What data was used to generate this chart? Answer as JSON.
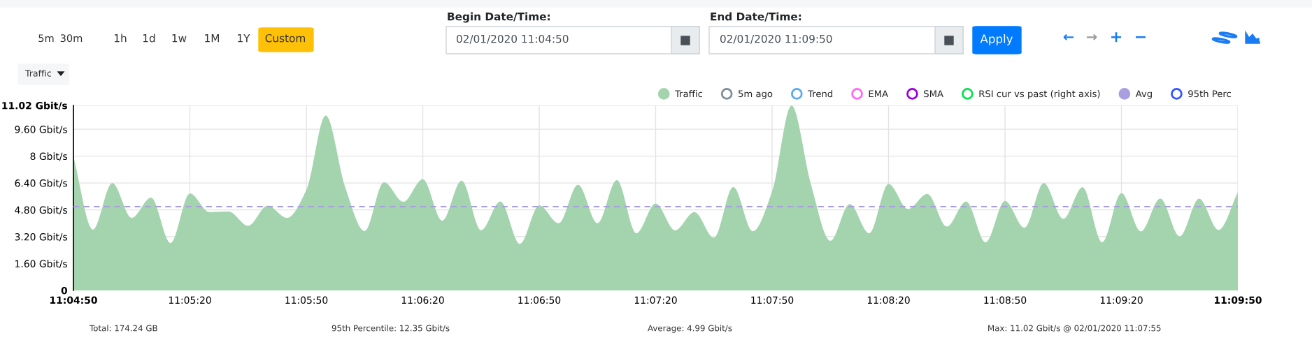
{
  "chart_data": {
    "type": "area",
    "x": [
      "2020-02-01T11:04:50",
      "2020-02-01T11:04:55",
      "2020-02-01T11:05:00",
      "2020-02-01T11:05:05",
      "2020-02-01T11:05:10",
      "2020-02-01T11:05:15",
      "2020-02-01T11:05:20",
      "2020-02-01T11:05:25",
      "2020-02-01T11:05:30",
      "2020-02-01T11:05:35",
      "2020-02-01T11:05:40",
      "2020-02-01T11:05:45",
      "2020-02-01T11:05:50",
      "2020-02-01T11:05:55",
      "2020-02-01T11:06:00",
      "2020-02-01T11:06:05",
      "2020-02-01T11:06:10",
      "2020-02-01T11:06:15",
      "2020-02-01T11:06:20",
      "2020-02-01T11:06:25",
      "2020-02-01T11:06:30",
      "2020-02-01T11:06:35",
      "2020-02-01T11:06:40",
      "2020-02-01T11:06:45",
      "2020-02-01T11:06:50",
      "2020-02-01T11:06:55",
      "2020-02-01T11:07:00",
      "2020-02-01T11:07:05",
      "2020-02-01T11:07:10",
      "2020-02-01T11:07:15",
      "2020-02-01T11:07:20",
      "2020-02-01T11:07:25",
      "2020-02-01T11:07:30",
      "2020-02-01T11:07:35",
      "2020-02-01T11:07:40",
      "2020-02-01T11:07:45",
      "2020-02-01T11:07:50",
      "2020-02-01T11:07:55",
      "2020-02-01T11:08:00",
      "2020-02-01T11:08:05",
      "2020-02-01T11:08:10",
      "2020-02-01T11:08:15",
      "2020-02-01T11:08:20",
      "2020-02-01T11:08:25",
      "2020-02-01T11:08:30",
      "2020-02-01T11:08:35",
      "2020-02-01T11:08:40",
      "2020-02-01T11:08:45",
      "2020-02-01T11:08:50",
      "2020-02-01T11:08:55",
      "2020-02-01T11:09:00",
      "2020-02-01T11:09:05",
      "2020-02-01T11:09:10",
      "2020-02-01T11:09:15",
      "2020-02-01T11:09:20",
      "2020-02-01T11:09:25",
      "2020-02-01T11:09:30",
      "2020-02-01T11:09:35",
      "2020-02-01T11:09:40",
      "2020-02-01T11:09:45",
      "2020-02-01T11:09:50"
    ],
    "series": [
      {
        "name": "Traffic",
        "color": "#a3d4ae",
        "values": [
          7.97,
          3.62,
          6.4,
          4.32,
          5.53,
          2.82,
          5.78,
          4.67,
          4.7,
          3.85,
          5.05,
          4.32,
          5.98,
          10.43,
          6.15,
          3.53,
          6.45,
          5.28,
          6.63,
          4.15,
          6.55,
          3.58,
          5.3,
          2.77,
          5.07,
          4.0,
          6.3,
          4.0,
          6.58,
          3.4,
          5.18,
          3.58,
          4.67,
          3.13,
          6.17,
          3.52,
          5.9,
          11.02,
          6.32,
          2.95,
          5.15,
          3.4,
          6.35,
          4.85,
          5.75,
          3.8,
          5.3,
          2.86,
          5.33,
          3.73,
          6.4,
          4.26,
          6.15,
          2.86,
          5.8,
          3.51,
          5.48,
          3.21,
          5.47,
          3.6,
          5.85
        ]
      },
      {
        "name": "5m ago",
        "type": "line",
        "color": "#7f8c99",
        "values": [
          null,
          null,
          null,
          null,
          null,
          null,
          null,
          null,
          null,
          null,
          null,
          null,
          null,
          null,
          null,
          null,
          null,
          null,
          null,
          null,
          null,
          null,
          null,
          null,
          null,
          null,
          null,
          null,
          null,
          null,
          null,
          null,
          null,
          null,
          null,
          null,
          null,
          null,
          null,
          null,
          null,
          null,
          null,
          null,
          null,
          null,
          null,
          null,
          null,
          null,
          null,
          null,
          null,
          null,
          null,
          null,
          null,
          null,
          null,
          null,
          null
        ]
      },
      {
        "name": "Trend",
        "type": "line",
        "color": "#5aa9f0",
        "values": [
          null,
          null,
          null,
          null,
          null,
          null,
          null,
          null,
          null,
          null,
          null,
          null,
          null,
          null,
          null,
          null,
          null,
          null,
          null,
          null,
          null,
          null,
          null,
          null,
          null,
          null,
          null,
          null,
          null,
          null,
          null,
          null,
          null,
          null,
          null,
          null,
          null,
          null,
          null,
          null,
          null,
          null,
          null,
          null,
          null,
          null,
          null,
          null,
          null,
          null,
          null,
          null,
          null,
          null,
          null,
          null,
          null,
          null,
          null,
          null,
          null
        ]
      },
      {
        "name": "EMA",
        "type": "line",
        "color": "#ff66ff",
        "values": [
          null,
          null,
          null,
          null,
          null,
          null,
          null,
          null,
          null,
          null,
          null,
          null,
          null,
          null,
          null,
          null,
          null,
          null,
          null,
          null,
          null,
          null,
          null,
          null,
          null,
          null,
          null,
          null,
          null,
          null,
          null,
          null,
          null,
          null,
          null,
          null,
          null,
          null,
          null,
          null,
          null,
          null,
          null,
          null,
          null,
          null,
          null,
          null,
          null,
          null,
          null,
          null,
          null,
          null,
          null,
          null,
          null,
          null,
          null,
          null,
          null
        ]
      },
      {
        "name": "SMA",
        "type": "line",
        "color": "#9900dd",
        "values": [
          null,
          null,
          null,
          null,
          null,
          null,
          null,
          null,
          null,
          null,
          null,
          null,
          null,
          null,
          null,
          null,
          null,
          null,
          null,
          null,
          null,
          null,
          null,
          null,
          null,
          null,
          null,
          null,
          null,
          null,
          null,
          null,
          null,
          null,
          null,
          null,
          null,
          null,
          null,
          null,
          null,
          null,
          null,
          null,
          null,
          null,
          null,
          null,
          null,
          null,
          null,
          null,
          null,
          null,
          null,
          null,
          null,
          null,
          null,
          null,
          null
        ]
      },
      {
        "name": "RSI cur vs past (right axis)",
        "type": "line",
        "color": "#00e64d",
        "values": [
          null,
          null,
          null,
          null,
          null,
          null,
          null,
          null,
          null,
          null,
          null,
          null,
          null,
          null,
          null,
          null,
          null,
          null,
          null,
          null,
          null,
          null,
          null,
          null,
          null,
          null,
          null,
          null,
          null,
          null,
          null,
          null,
          null,
          null,
          null,
          null,
          null,
          null,
          null,
          null,
          null,
          null,
          null,
          null,
          null,
          null,
          null,
          null,
          null,
          null,
          null,
          null,
          null,
          null,
          null,
          null,
          null,
          null,
          null,
          null,
          null
        ]
      },
      {
        "name": "Avg",
        "type": "line",
        "color": "#a99ee0",
        "line_style": "dashed",
        "x": [
          "2020-02-01T11:04:50",
          "2020-02-01T11:09:50"
        ],
        "values": [
          4.99,
          4.99
        ]
      },
      {
        "name": "95th Perc",
        "type": "line",
        "color": "#3355ff",
        "values": [
          null,
          null,
          null,
          null,
          null,
          null,
          null,
          null,
          null,
          null,
          null,
          null,
          null,
          null,
          null,
          null,
          null,
          null,
          null,
          null,
          null,
          null,
          null,
          null,
          null,
          null,
          null,
          null,
          null,
          null,
          null,
          null,
          null,
          null,
          null,
          null,
          null,
          null,
          null,
          null,
          null,
          null,
          null,
          null,
          null,
          null,
          null,
          null,
          null,
          null,
          null,
          null,
          null,
          null,
          null,
          null,
          null,
          null,
          null,
          null,
          null
        ]
      }
    ],
    "xlim": [
      "2020-02-01T11:04:50",
      "2020-02-01T11:09:50"
    ],
    "xticks": [
      {
        "value": "2020-02-01T11:04:50",
        "label": "11:04:50"
      },
      {
        "value": "2020-02-01T11:05:20",
        "label": "11:05:20"
      },
      {
        "value": "2020-02-01T11:05:50",
        "label": "11:05:50"
      },
      {
        "value": "2020-02-01T11:06:20",
        "label": "11:06:20"
      },
      {
        "value": "2020-02-01T11:06:50",
        "label": "11:06:50"
      },
      {
        "value": "2020-02-01T11:07:20",
        "label": "11:07:20"
      },
      {
        "value": "2020-02-01T11:07:50",
        "label": "11:07:50"
      },
      {
        "value": "2020-02-01T11:08:20",
        "label": "11:08:20"
      },
      {
        "value": "2020-02-01T11:08:50",
        "label": "11:08:50"
      },
      {
        "value": "2020-02-01T11:09:20",
        "label": "11:09:20"
      },
      {
        "value": "2020-02-01T11:09:50",
        "label": "11:09:50"
      }
    ],
    "ylim": [
      0,
      11.02
    ],
    "yticks": [
      0,
      {
        "value": 1.6,
        "label": "1.60 Gbit/s"
      },
      {
        "value": 3.2,
        "label": "3.20 Gbit/s"
      },
      {
        "value": 4.8,
        "label": "4.80 Gbit/s"
      },
      {
        "value": 6.4,
        "label": "6.40 Gbit/s"
      },
      {
        "value": 8,
        "label": "8 Gbit/s"
      },
      {
        "value": 9.6,
        "label": "9.60 Gbit/s"
      },
      {
        "value": 11.02,
        "label": "11.02 Gbit/s"
      }
    ],
    "grid": true,
    "legend": "top right",
    "annotations": [
      "5m",
      "30m",
      "1h",
      "1d",
      "1w",
      "1M",
      "1Y",
      "Custom",
      "Traffic",
      "Begin Date/Time:",
      "02/01/2020 11:04:50",
      "End Date/Time:",
      "02/01/2020 11:09:50",
      "Apply",
      "←",
      "→",
      "+",
      "−",
      "Total: 174.24 GB",
      "95th Percentile: 12.35 Gbit/s",
      "Average: 4.99 Gbit/s",
      "Max: 11.02 Gbit/s @ 02/01/2020 11:07:55"
    ]
  }
}
